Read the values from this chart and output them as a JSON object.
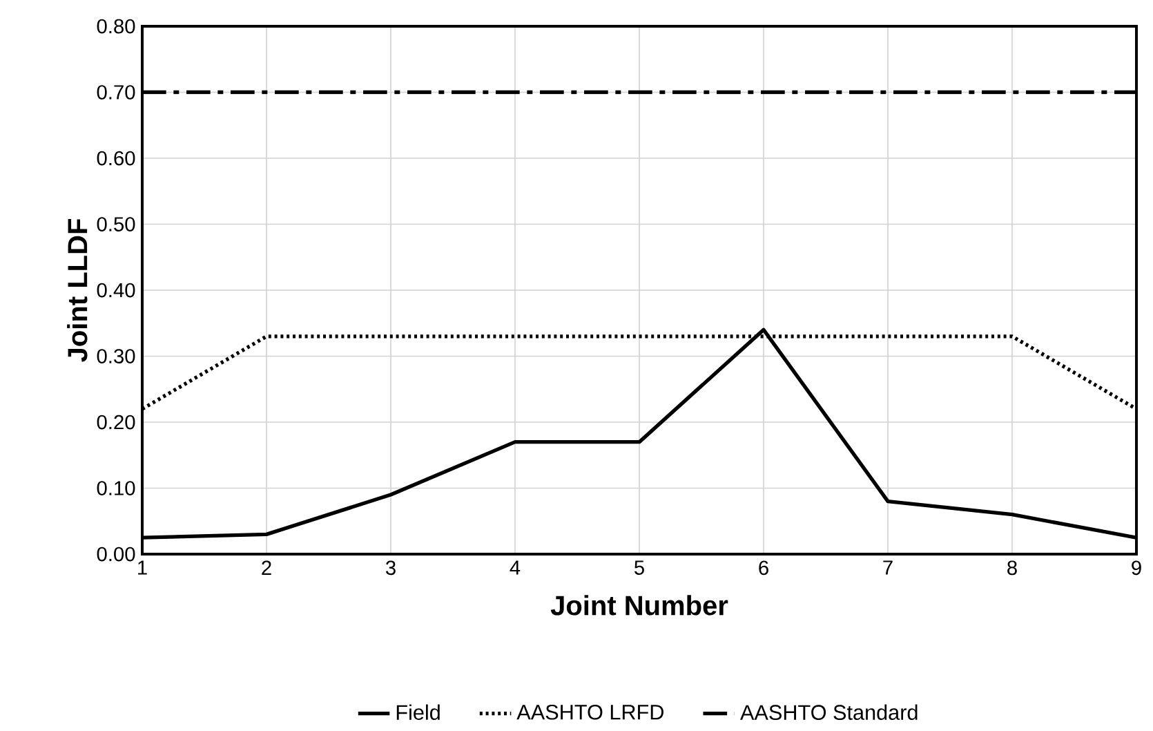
{
  "chart_data": {
    "type": "line",
    "xlabel": "Joint Number",
    "ylabel": "Joint LLDF",
    "x": [
      1,
      2,
      3,
      4,
      5,
      6,
      7,
      8,
      9
    ],
    "series": [
      {
        "name": "Field",
        "color": "#000000",
        "line_style": "solid",
        "values": [
          0.025,
          0.03,
          0.09,
          0.17,
          0.17,
          0.34,
          0.08,
          0.06,
          0.025
        ]
      },
      {
        "name": "AASHTO LRFD",
        "color": "#000000",
        "line_style": "dotted",
        "values": [
          0.22,
          0.33,
          0.33,
          0.33,
          0.33,
          0.33,
          0.33,
          0.33,
          0.22
        ]
      },
      {
        "name": "AASHTO Standard",
        "color": "#000000",
        "line_style": "dashdot",
        "values": [
          0.7,
          0.7,
          0.7,
          0.7,
          0.7,
          0.7,
          0.7,
          0.7,
          0.7
        ]
      }
    ],
    "xlim": [
      1,
      9
    ],
    "xticks": [
      1,
      2,
      3,
      4,
      5,
      6,
      7,
      8,
      9
    ],
    "ylim": [
      0,
      0.8
    ],
    "yticks": [
      {
        "value": 0,
        "label": "0.00"
      },
      {
        "value": 0.1,
        "label": "0.10"
      },
      {
        "value": 0.2,
        "label": "0.20"
      },
      {
        "value": 0.3,
        "label": "0.30"
      },
      {
        "value": 0.4,
        "label": "0.40"
      },
      {
        "value": 0.5,
        "label": "0.50"
      },
      {
        "value": 0.6,
        "label": "0.60"
      },
      {
        "value": 0.7,
        "label": "0.70"
      },
      {
        "value": 0.8,
        "label": "0.80"
      }
    ],
    "grid": true,
    "legend": "bottom",
    "marker": "none"
  }
}
